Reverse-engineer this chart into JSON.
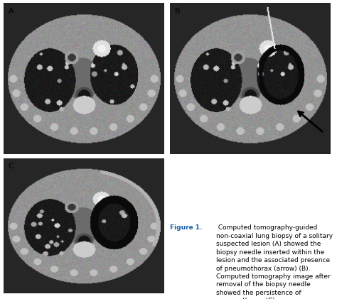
{
  "figure_title_bold": "Figure 1.",
  "figure_caption": " Computed tomography-guided non-coaxial lung biopsy of a solitary suspected lesion (A) showed the biopsy needle inserted within the lesion and the associated presence of pneumothorax (arrow) (B). Computed tomography image after removal of the biopsy needle showed the persistence of pneumothorax (C)",
  "panel_labels": [
    "A",
    "B",
    "C"
  ],
  "bg_color": "#ffffff",
  "panel_label_color": "#000000",
  "caption_title_color": "#1a5fa8",
  "caption_text_color": "#000000",
  "caption_fontsize": 6.5,
  "grid_bg": "#3a3a3a"
}
